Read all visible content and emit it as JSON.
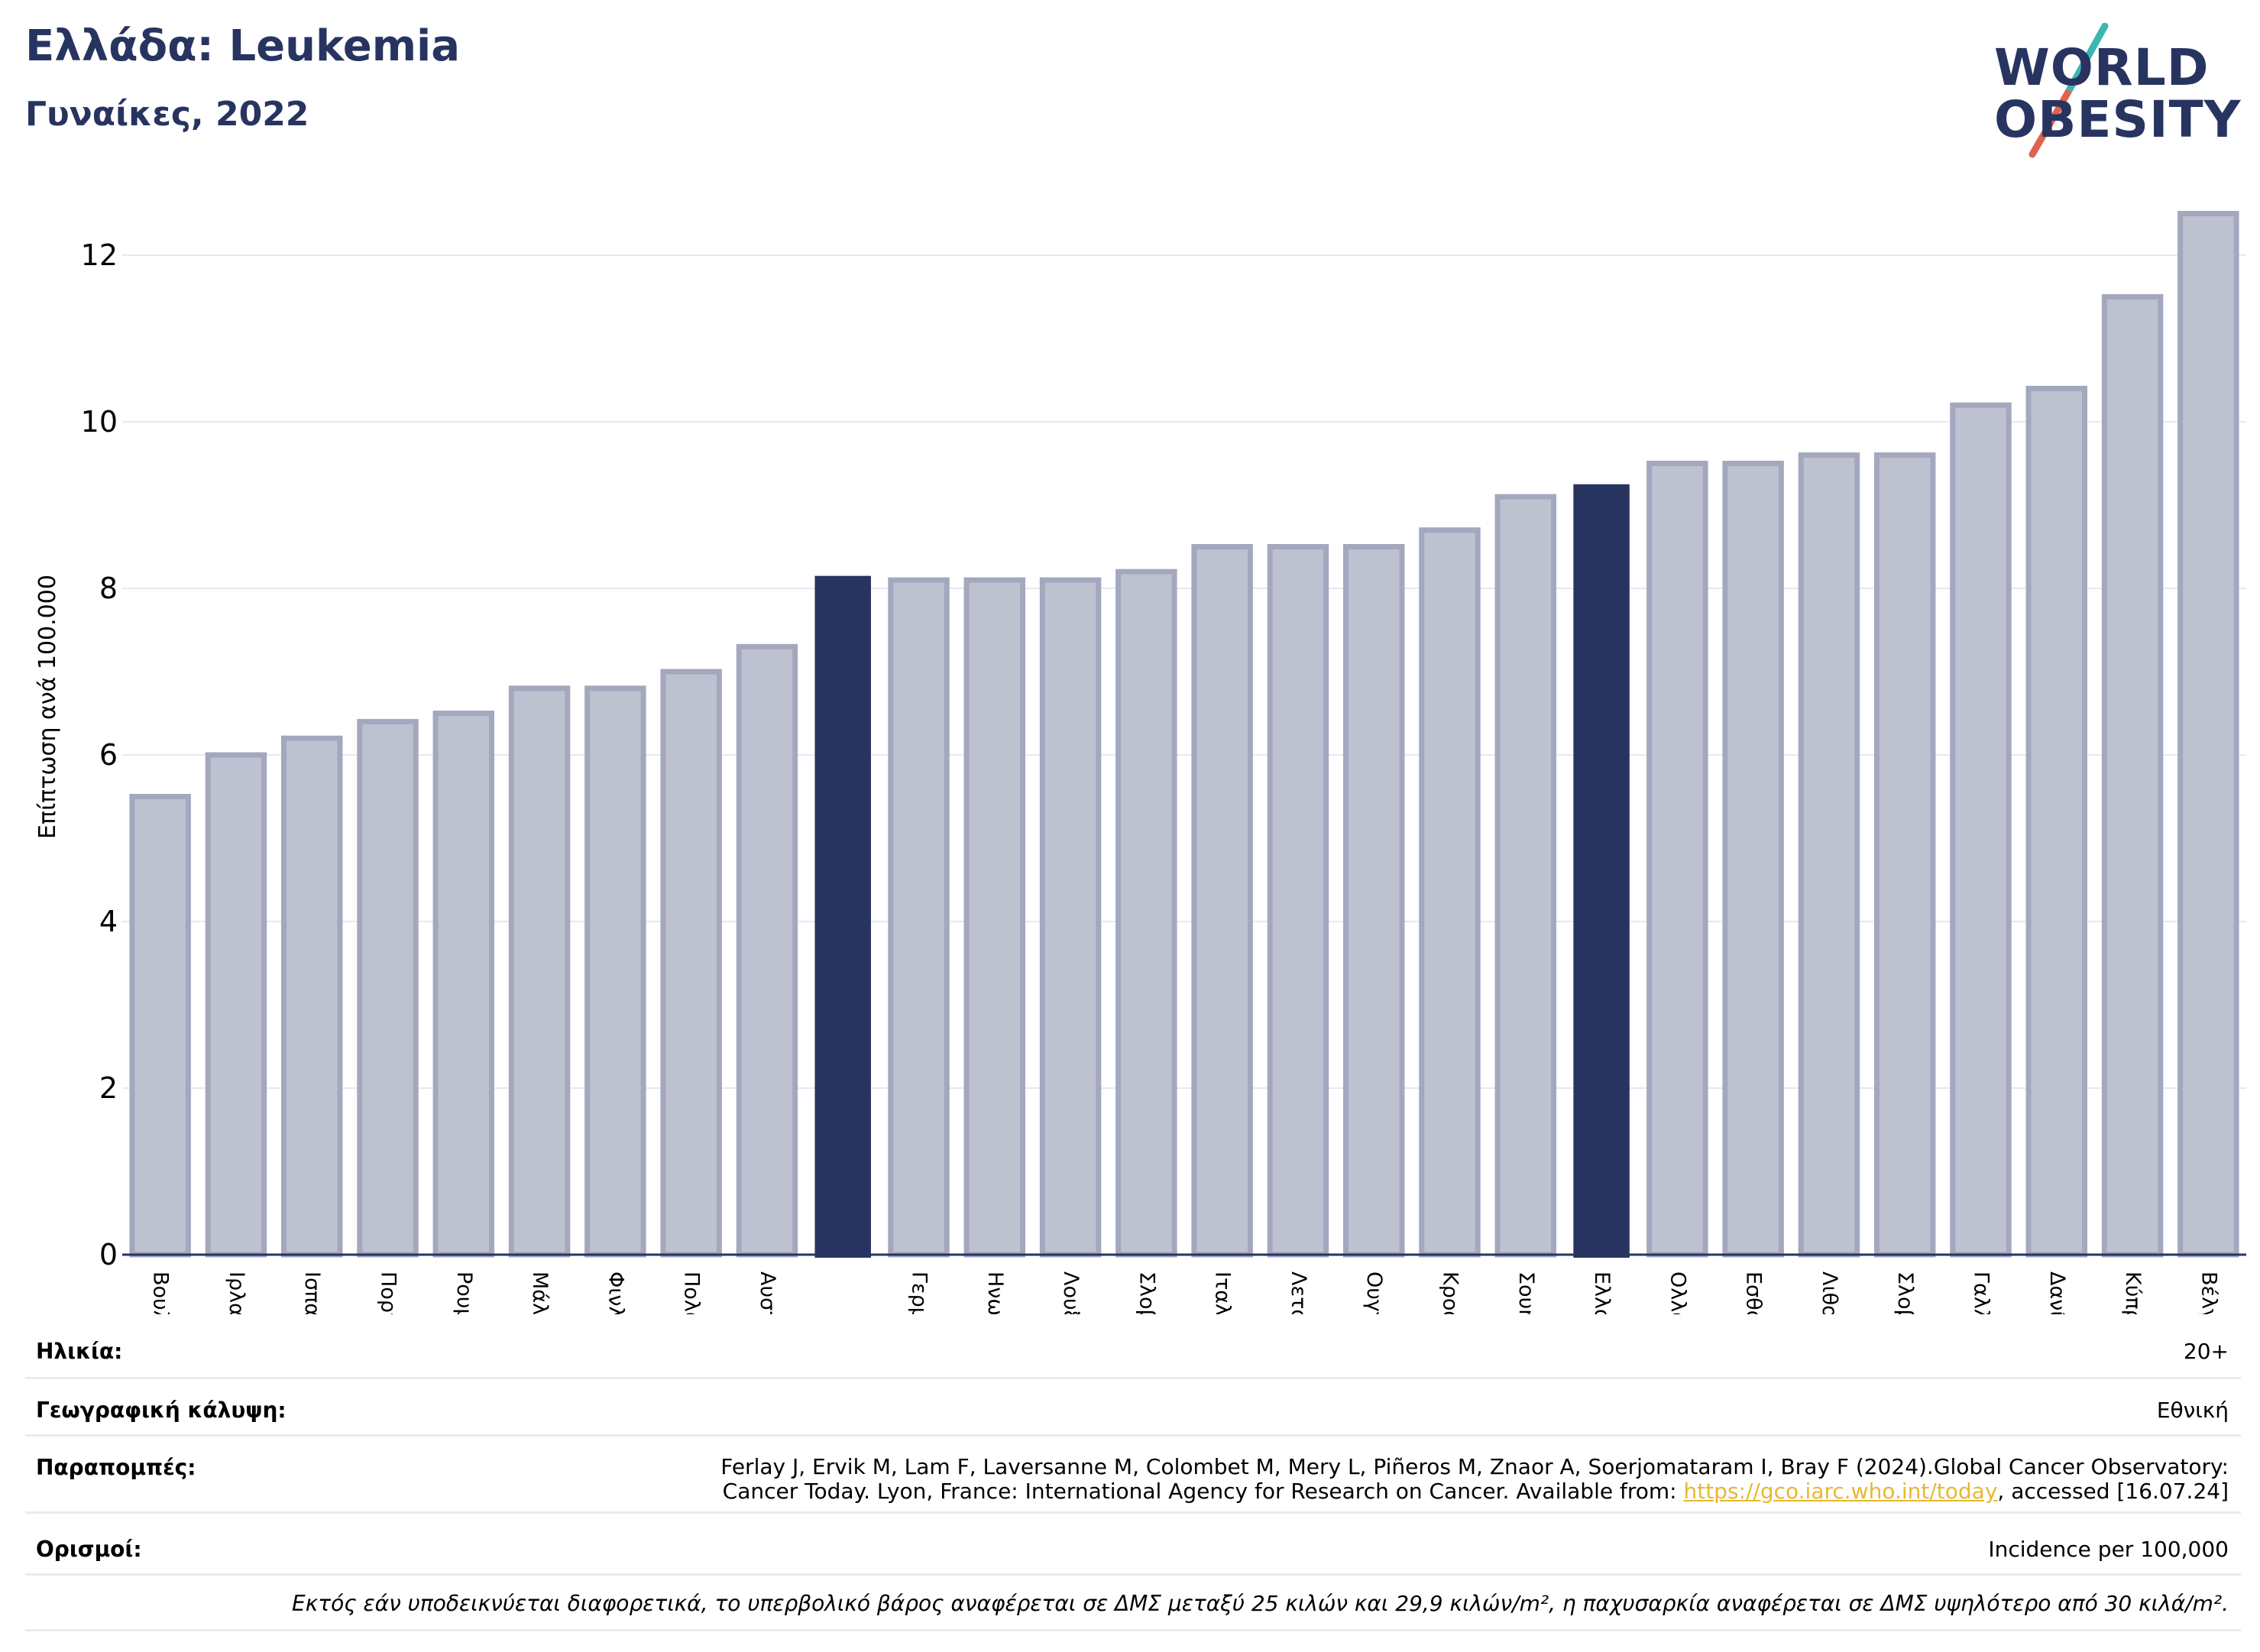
{
  "header": {
    "title": "Ελλάδα: Leukemia",
    "subtitle": "Γυναίκες, 2022"
  },
  "logo": {
    "line1": "WORLD",
    "line2": "OBESITY",
    "colors": {
      "text": "#283460",
      "slash_top": "#3cb6b2",
      "slash_bottom": "#e0614e"
    }
  },
  "chart_data": {
    "type": "bar",
    "ylabel": "Επίπτωση ανά 100.000",
    "xlabel": "",
    "ylim": [
      0,
      13
    ],
    "yticks": [
      0,
      2,
      4,
      6,
      8,
      10,
      12
    ],
    "grid": true,
    "categories": [
      "Βουλγαρία",
      "Ιρλανδία",
      "Ισπανία",
      "Πορτογαλία",
      "Ρουμανία",
      "Μάλτα",
      "Φινλανδία",
      "Πολωνία",
      "Αυστρία",
      "",
      "Γερμανία",
      "Ηνωμένο Βασίλειο",
      "Λουξεμβούργο",
      "Σλοβακία",
      "Ιταλία",
      "Λετονία",
      "Ουγγαρία",
      "Κροατία",
      "Σουηδία",
      "Ελλάδα",
      "Ολλανδία",
      "Εσθονία",
      "Λιθουανία",
      "Σλοβενία",
      "Γαλλία",
      "Δανία",
      "Κύπρος",
      "Βέλγιο"
    ],
    "values": [
      5.5,
      6.0,
      6.2,
      6.4,
      6.5,
      6.8,
      6.8,
      7.0,
      7.3,
      8.15,
      8.1,
      8.1,
      8.1,
      8.2,
      8.5,
      8.5,
      8.5,
      8.7,
      9.1,
      9.25,
      9.5,
      9.5,
      9.6,
      9.6,
      10.2,
      10.4,
      11.5,
      12.5
    ],
    "highlighted": [
      9,
      19
    ],
    "colors": {
      "bar": "#bec1cf",
      "bar_edge": "#a4a8be",
      "highlight": "#283460",
      "axis": "#283460",
      "grid": "#e6e9ef"
    }
  },
  "info": {
    "age_label": "Ηλικία:",
    "age_value": "20+",
    "geo_label": "Γεωγραφική κάλυψη:",
    "geo_value": "Εθνική",
    "ref_label": "Παραπομπές:",
    "ref_line1": "Ferlay J, Ervik M, Lam F, Laversanne M, Colombet M, Mery L, Piñeros M, Znaor A, Soerjomataram I, Bray F (2024).Global Cancer Observatory:",
    "ref_line2_pre": "Cancer Today. Lyon, France: International Agency for Research on Cancer. Available from: ",
    "ref_link": "https://gco.iarc.who.int/today",
    "ref_line2_post": ", accessed [16.07.24]",
    "def_label": "Ορισμοί:",
    "def_value": "Incidence per 100,000",
    "note": "Εκτός εάν υποδεικνύεται διαφορετικά, το υπερβολικό βάρος αναφέρεται σε ΔΜΣ μεταξύ 25 κιλών και 29,9 κιλών/m², η παχυσαρκία αναφέρεται σε ΔΜΣ υψηλότερο από 30 κιλά/m²."
  }
}
